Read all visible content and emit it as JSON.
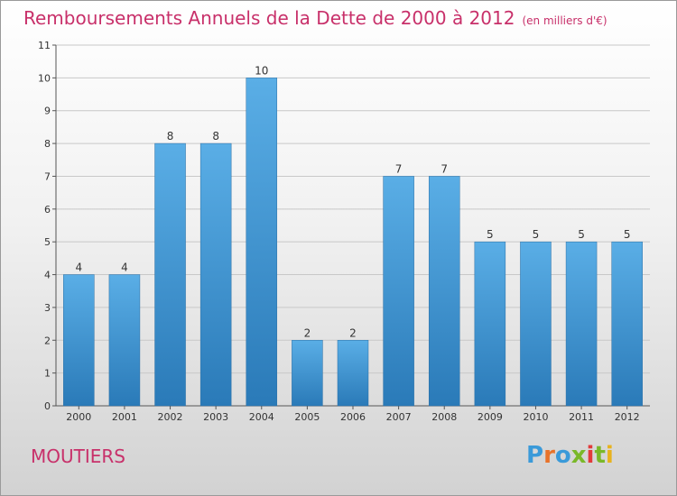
{
  "header": {
    "title": "Remboursements Annuels de la Dette de 2000 à 2012",
    "unit": "(en milliers d'€)"
  },
  "footer": {
    "commune": "MOUTIERS",
    "logo_text": "Proxiti",
    "logo_colors": [
      "#3a9ad9",
      "#e8732a",
      "#3a9ad9",
      "#7ab829",
      "#e23b3b",
      "#7ab829",
      "#e8b21d"
    ]
  },
  "colors": {
    "bar_light": "#5aaee6",
    "bar_dark": "#2a7ab8",
    "title": "#c8306a",
    "grid": "#c8c8c8"
  },
  "chart_data": {
    "type": "bar",
    "title": "Remboursements Annuels de la Dette de 2000 à 2012",
    "subtitle": "(en milliers d'€)",
    "categories": [
      "2000",
      "2001",
      "2002",
      "2003",
      "2004",
      "2005",
      "2006",
      "2007",
      "2008",
      "2009",
      "2010",
      "2011",
      "2012"
    ],
    "values": [
      4,
      4,
      8,
      8,
      10,
      2,
      2,
      7,
      7,
      5,
      5,
      5,
      5
    ],
    "ylim": [
      0,
      11
    ],
    "yticks": [
      0,
      1,
      2,
      3,
      4,
      5,
      6,
      7,
      8,
      9,
      10,
      11
    ],
    "grid": true,
    "data_labels": true
  }
}
